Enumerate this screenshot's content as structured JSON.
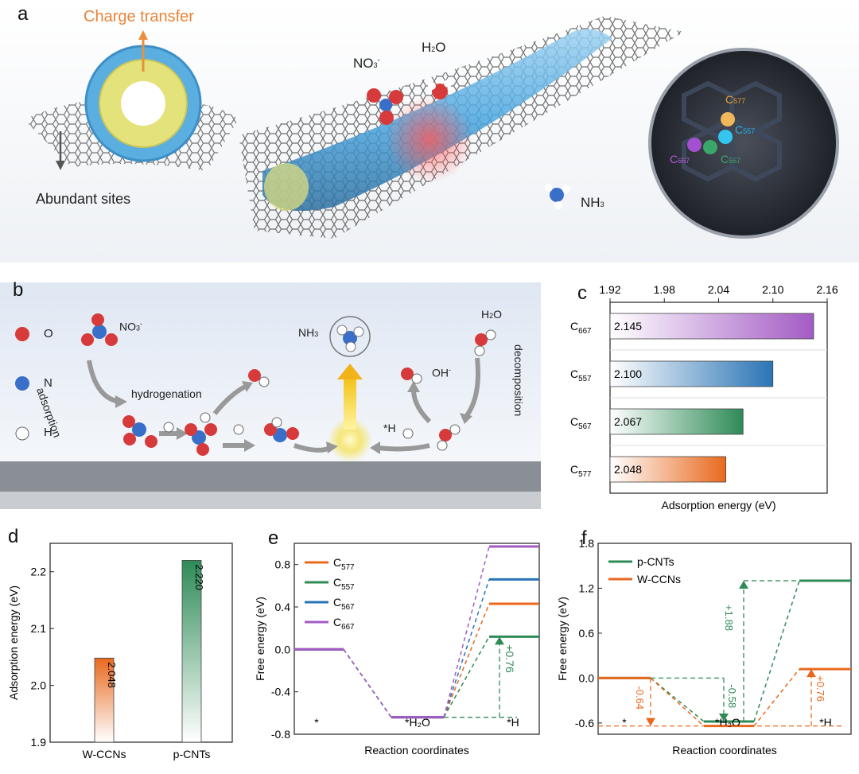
{
  "panel_labels": {
    "a": "a",
    "b": "b",
    "c": "c",
    "d": "d",
    "e": "e",
    "f": "f"
  },
  "panel_a": {
    "charge_transfer": "Charge transfer",
    "abundant_sites": "Abundant sites",
    "no3": "NO3-",
    "h2o": "H2O",
    "nh3": "NH3",
    "sites": [
      "C577",
      "C557",
      "C667",
      "C567"
    ],
    "colors": {
      "C577": "#e8a23a",
      "C557": "#27b4e8",
      "C667": "#b45bd6",
      "C567": "#3aa76a"
    }
  },
  "panel_b": {
    "legend": [
      {
        "symbol": "O",
        "color": "#d63a3a"
      },
      {
        "symbol": "N",
        "color": "#3a6fc9"
      },
      {
        "symbol": "H",
        "color": "#ffffff"
      }
    ],
    "no3_label": "NO3-",
    "adsorption": "adsorption",
    "hydrogenation": "hydrogenation",
    "nh3_label": "NH3",
    "h2o_label": "H2O",
    "oh_label": "OH-",
    "h_label": "*H",
    "decomposition": "decomposition"
  },
  "chart_data": [
    {
      "id": "c",
      "type": "bar",
      "orientation": "horizontal",
      "categories": [
        "C667",
        "C557",
        "C567",
        "C577"
      ],
      "values": [
        2.145,
        2.1,
        2.067,
        2.048
      ],
      "value_labels": [
        "2.145",
        "2.100",
        "2.067",
        "2.048"
      ],
      "colors": [
        "#a35bc4",
        "#2a74b5",
        "#2e8b57",
        "#e8691e"
      ],
      "xlabel": "Adsorption energy (eV)",
      "xlim": [
        1.92,
        2.16
      ],
      "xticks": [
        "1.92",
        "1.98",
        "2.04",
        "2.10",
        "2.16"
      ],
      "xtick_values": [
        1.92,
        1.98,
        2.04,
        2.1,
        2.16
      ],
      "axis_position": "top"
    },
    {
      "id": "d",
      "type": "bar",
      "categories": [
        "W-CCNs",
        "p-CNTs"
      ],
      "values": [
        2.048,
        2.22
      ],
      "value_labels": [
        "2.048",
        "2.220"
      ],
      "colors": [
        "#e8691e",
        "#2e8b57"
      ],
      "ylabel": "Adsorption energy (eV)",
      "ylim": [
        1.9,
        2.25
      ],
      "yticks": [
        "1.9",
        "2.0",
        "2.1",
        "2.2"
      ],
      "ytick_values": [
        1.9,
        2.0,
        2.1,
        2.2
      ]
    },
    {
      "id": "e",
      "type": "line",
      "subtype": "energy_profile",
      "categories": [
        "*",
        "*H2O",
        "*H"
      ],
      "category_labels": [
        "*",
        "*H₂O",
        "*H"
      ],
      "xlabel": "Reaction coordinates",
      "ylabel": "Free energy (eV)",
      "ylim": [
        -0.8,
        1.0
      ],
      "yticks": [
        "-0.8",
        "-0.4",
        "0.0",
        "0.4",
        "0.8"
      ],
      "ytick_values": [
        -0.8,
        -0.4,
        0.0,
        0.4,
        0.8
      ],
      "series": [
        {
          "name": "C577",
          "values": [
            0.0,
            -0.64,
            0.43
          ],
          "color": "#e8691e"
        },
        {
          "name": "C557",
          "values": [
            0.0,
            -0.64,
            0.12
          ],
          "color": "#2e8b57"
        },
        {
          "name": "C567",
          "values": [
            0.0,
            -0.64,
            0.66
          ],
          "color": "#2a74b5"
        },
        {
          "name": "C667",
          "values": [
            0.0,
            -0.64,
            0.97
          ],
          "color": "#a35bc4"
        }
      ],
      "annotations": [
        {
          "text": "+0.76",
          "color": "#2e8b57"
        }
      ]
    },
    {
      "id": "f",
      "type": "line",
      "subtype": "energy_profile",
      "categories": [
        "*",
        "*H2O",
        "*H"
      ],
      "category_labels": [
        "*",
        "*H₂O",
        "*H"
      ],
      "xlabel": "Reaction coordinates",
      "ylabel": "Free energy (eV)",
      "ylim": [
        -0.75,
        1.8
      ],
      "yticks": [
        "-0.6",
        "0.0",
        "0.6",
        "1.2",
        "1.8"
      ],
      "ytick_values": [
        -0.6,
        0.0,
        0.6,
        1.2,
        1.8
      ],
      "series": [
        {
          "name": "p-CNTs",
          "values": [
            0.0,
            -0.58,
            1.3
          ],
          "color": "#2e8b57"
        },
        {
          "name": "W-CCNs",
          "values": [
            0.0,
            -0.64,
            0.12
          ],
          "color": "#e8691e"
        }
      ],
      "annotations": [
        {
          "text": "-0.64",
          "color": "#e8691e"
        },
        {
          "text": "-0.58",
          "color": "#2e8b57"
        },
        {
          "text": "+1.88",
          "color": "#2e8b57"
        },
        {
          "text": "+0.76",
          "color": "#e8691e"
        }
      ]
    }
  ]
}
